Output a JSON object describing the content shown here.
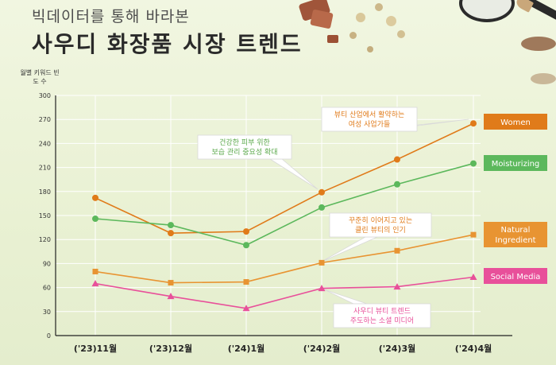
{
  "header": {
    "subtitle": "빅데이터를 통해 바라본",
    "title": "사우디 화장품 시장 트렌드"
  },
  "chart_data": {
    "type": "line",
    "ylabel": "월별 키워드 빈도 수",
    "ylim": [
      0,
      300
    ],
    "yticks": [
      0,
      30,
      60,
      90,
      120,
      150,
      180,
      210,
      240,
      270,
      300
    ],
    "categories": [
      "('23)11월",
      "('23)12월",
      "('24)1월",
      "('24)2월",
      "('24)3월",
      "('24)4월"
    ],
    "grid": true,
    "series": [
      {
        "name": "Women",
        "color": "#e07b1a",
        "marker": "circle",
        "values": [
          172,
          128,
          130,
          179,
          220,
          265
        ]
      },
      {
        "name": "Moisturizing",
        "color": "#5cb85c",
        "marker": "circle",
        "values": [
          146,
          138,
          113,
          160,
          189,
          215
        ]
      },
      {
        "name": "Natural Ingredient",
        "color": "#e89432",
        "marker": "square",
        "values": [
          80,
          66,
          67,
          91,
          106,
          126
        ]
      },
      {
        "name": "Social Media",
        "color": "#e8509a",
        "marker": "triangle",
        "values": [
          65,
          49,
          34,
          59,
          61,
          73
        ]
      }
    ],
    "annotations": [
      {
        "text": "뷰티 산업에서 활약하는\n여성 사업가들"
      },
      {
        "text": "건강한 피부 위한\n보습 관리 중요성 확대"
      },
      {
        "text": "꾸준히 이어지고 있는\n클린 뷰티의 인기"
      },
      {
        "text": "사우디 뷰티 트렌드\n주도하는 소셜 미디어"
      }
    ]
  }
}
